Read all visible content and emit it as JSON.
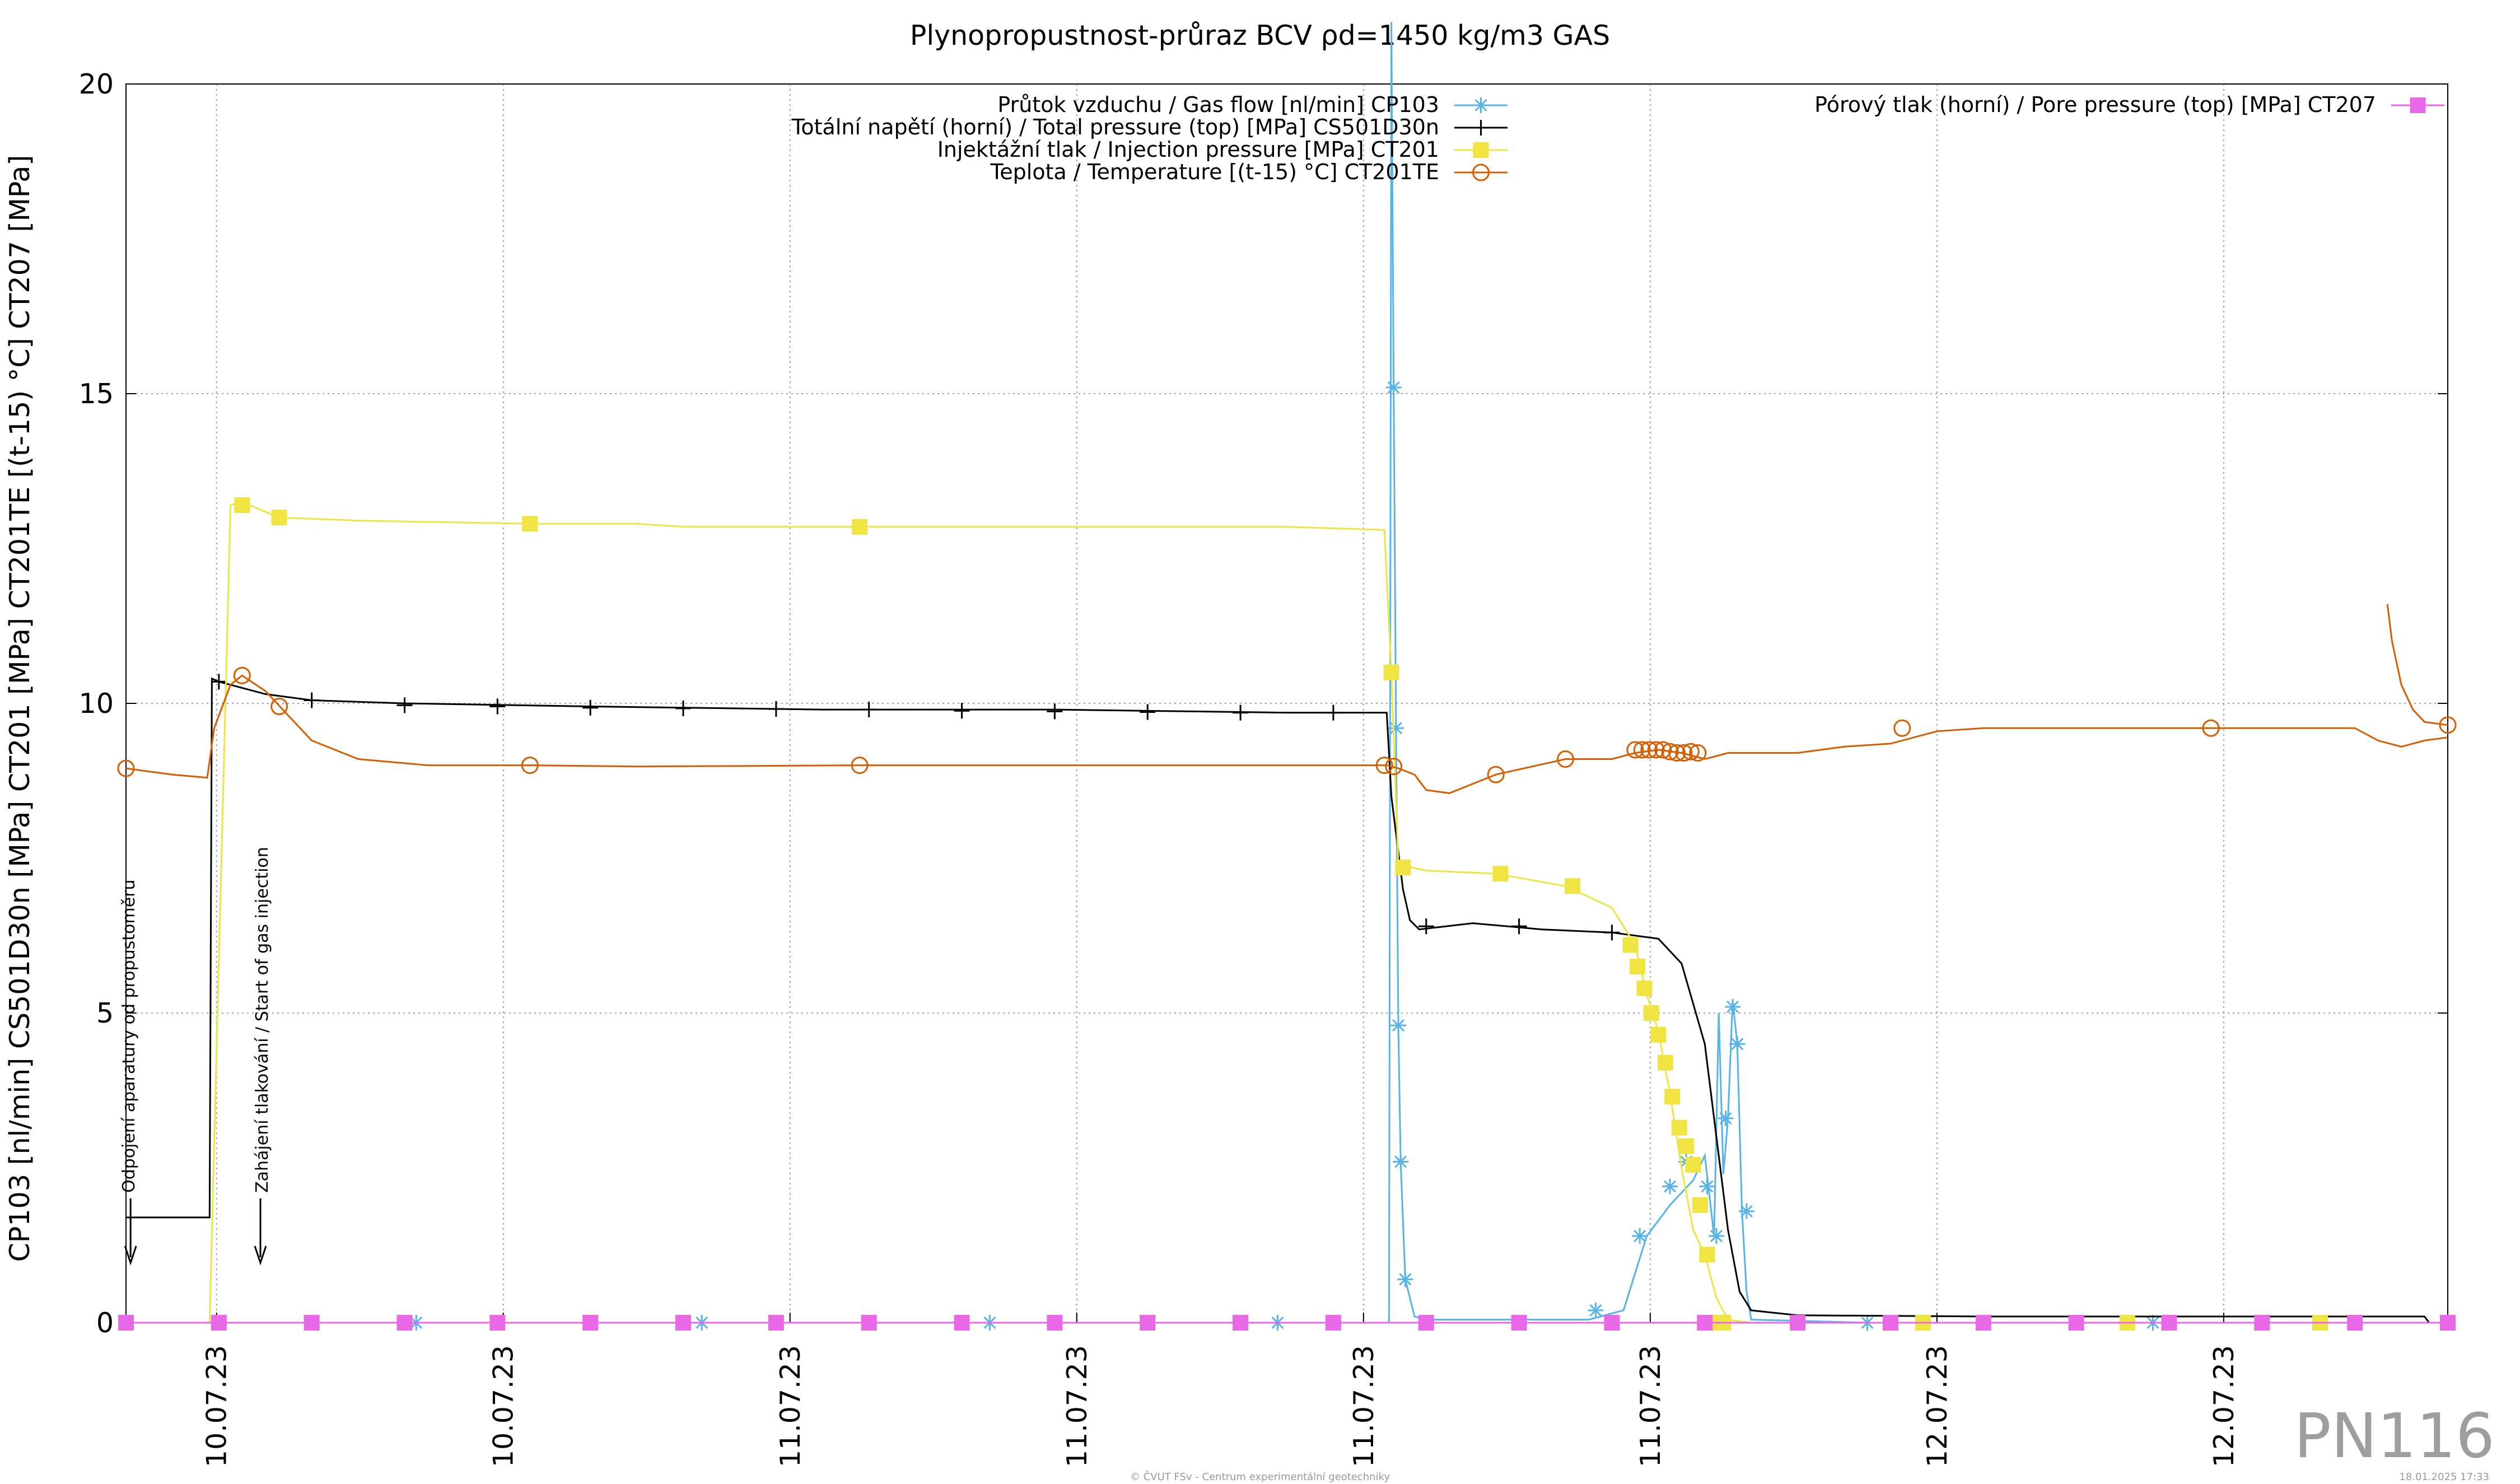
{
  "chart_data": {
    "type": "line",
    "title": "Plynopropustnost-průraz BCV ρd=1450 kg/m3 GAS",
    "ylabel": "CP103 [nl/min] CS501D30n [MPa] CT201 [MPa] CT201TE [(t-15) °C] CT207 [MPa]",
    "xlabel": "",
    "ylim": [
      0,
      20
    ],
    "xlim": [
      0,
      100
    ],
    "yticks": [
      "0",
      "5",
      "10",
      "15",
      "20"
    ],
    "xtick_labels": [
      "10.07.23",
      "10.07.23",
      "11.07.23",
      "11.07.23",
      "11.07.23",
      "11.07.23",
      "12.07.23",
      "12.07.23"
    ],
    "grid": true,
    "legend_position": "top",
    "series": [
      {
        "name": "Průtok vzduchu / Gas flow [nl/min] CP103",
        "color": "#56b4e9",
        "marker": "asterisk",
        "points": [
          [
            0,
            0
          ],
          [
            12,
            0
          ],
          [
            25,
            0
          ],
          [
            37,
            0
          ],
          [
            50,
            0
          ],
          [
            54.4,
            0
          ],
          [
            54.5,
            21
          ],
          [
            54.6,
            15.1
          ],
          [
            54.7,
            9.6
          ],
          [
            54.8,
            4.8
          ],
          [
            54.9,
            2.6
          ],
          [
            55.1,
            0.7
          ],
          [
            55.5,
            0.1
          ],
          [
            56,
            0.05
          ],
          [
            60,
            0.05
          ],
          [
            63,
            0.05
          ],
          [
            64.5,
            0.2
          ],
          [
            65.5,
            1.4
          ],
          [
            66.5,
            1.9
          ],
          [
            67.5,
            2.3
          ],
          [
            68,
            2.7
          ],
          [
            68.4,
            1.4
          ],
          [
            68.6,
            5.0
          ],
          [
            68.8,
            2.4
          ],
          [
            69,
            3.3
          ],
          [
            69.2,
            5.2
          ],
          [
            69.4,
            4.5
          ],
          [
            69.6,
            1.8
          ],
          [
            69.8,
            0.5
          ],
          [
            70,
            0.05
          ],
          [
            75,
            0
          ],
          [
            87,
            0
          ],
          [
            100,
            0
          ]
        ],
        "marker_points": [
          [
            0,
            0
          ],
          [
            12.5,
            0
          ],
          [
            24.8,
            0
          ],
          [
            37.2,
            0
          ],
          [
            49.6,
            0
          ],
          [
            54.6,
            15.1
          ],
          [
            54.7,
            9.6
          ],
          [
            54.8,
            4.8
          ],
          [
            54.9,
            2.6
          ],
          [
            55.1,
            0.7
          ],
          [
            63.3,
            0.2
          ],
          [
            65.2,
            1.4
          ],
          [
            66.5,
            2.2
          ],
          [
            67.2,
            2.6
          ],
          [
            68.1,
            2.2
          ],
          [
            68.5,
            1.4
          ],
          [
            68.9,
            3.3
          ],
          [
            69.2,
            5.1
          ],
          [
            69.4,
            4.5
          ],
          [
            69.8,
            1.8
          ],
          [
            75,
            0
          ],
          [
            87.3,
            0
          ],
          [
            100,
            0
          ]
        ]
      },
      {
        "name": "Totální napětí (horní) / Total pressure (top) [MPa] CS501D30n",
        "color": "#000000",
        "marker": "plus",
        "points": [
          [
            0,
            1.7
          ],
          [
            3.6,
            1.7
          ],
          [
            3.7,
            10.4
          ],
          [
            4,
            10.35
          ],
          [
            6,
            10.15
          ],
          [
            8,
            10.05
          ],
          [
            12,
            10.0
          ],
          [
            20,
            9.95
          ],
          [
            30,
            9.9
          ],
          [
            40,
            9.9
          ],
          [
            50,
            9.85
          ],
          [
            54.3,
            9.85
          ],
          [
            54.5,
            8.5
          ],
          [
            55,
            7.0
          ],
          [
            55.3,
            6.5
          ],
          [
            55.7,
            6.35
          ],
          [
            58,
            6.45
          ],
          [
            61,
            6.35
          ],
          [
            64,
            6.3
          ],
          [
            66,
            6.2
          ],
          [
            67,
            5.8
          ],
          [
            68,
            4.5
          ],
          [
            68.5,
            3.0
          ],
          [
            69,
            1.5
          ],
          [
            69.5,
            0.5
          ],
          [
            70,
            0.2
          ],
          [
            72,
            0.12
          ],
          [
            80,
            0.1
          ],
          [
            90,
            0.1
          ],
          [
            99,
            0.1
          ],
          [
            99.2,
            0
          ]
        ],
        "marker_points": [
          [
            4,
            10.35
          ],
          [
            8,
            10.05
          ],
          [
            12,
            9.97
          ],
          [
            16,
            9.95
          ],
          [
            20,
            9.93
          ],
          [
            24,
            9.92
          ],
          [
            28,
            9.91
          ],
          [
            32,
            9.9
          ],
          [
            36,
            9.88
          ],
          [
            40,
            9.87
          ],
          [
            44,
            9.86
          ],
          [
            48,
            9.85
          ],
          [
            52,
            9.85
          ],
          [
            56,
            6.4
          ],
          [
            60,
            6.4
          ],
          [
            64,
            6.3
          ]
        ]
      },
      {
        "name": "Injektážní tlak / Injection pressure [MPa] CT201",
        "color": "#f0e442",
        "marker": "square",
        "points": [
          [
            3.6,
            0
          ],
          [
            4.5,
            13.2
          ],
          [
            5,
            13.25
          ],
          [
            6.6,
            13.0
          ],
          [
            10,
            12.95
          ],
          [
            17.4,
            12.9
          ],
          [
            22,
            12.9
          ],
          [
            24,
            12.85
          ],
          [
            31.6,
            12.85
          ],
          [
            40,
            12.85
          ],
          [
            50,
            12.85
          ],
          [
            54.2,
            12.8
          ],
          [
            54.5,
            10.5
          ],
          [
            54.8,
            7.4
          ],
          [
            56,
            7.3
          ],
          [
            59,
            7.25
          ],
          [
            62,
            7.05
          ],
          [
            64,
            6.7
          ],
          [
            65,
            6.1
          ],
          [
            65.5,
            5.3
          ],
          [
            66,
            4.7
          ],
          [
            66.5,
            3.7
          ],
          [
            67,
            2.5
          ],
          [
            67.5,
            1.5
          ],
          [
            68,
            1.1
          ],
          [
            68.5,
            0.4
          ],
          [
            69,
            0.05
          ],
          [
            70,
            0
          ],
          [
            100,
            0
          ]
        ],
        "marker_points": [
          [
            5,
            13.2
          ],
          [
            6.6,
            13.0
          ],
          [
            17.4,
            12.9
          ],
          [
            31.6,
            12.85
          ],
          [
            54.5,
            10.5
          ],
          [
            55,
            7.35
          ],
          [
            59.2,
            7.25
          ],
          [
            62.3,
            7.05
          ],
          [
            64.8,
            6.1
          ],
          [
            65.1,
            5.75
          ],
          [
            65.4,
            5.4
          ],
          [
            65.7,
            5.0
          ],
          [
            66,
            4.65
          ],
          [
            66.3,
            4.2
          ],
          [
            66.6,
            3.65
          ],
          [
            66.9,
            3.15
          ],
          [
            67.2,
            2.85
          ],
          [
            67.5,
            2.55
          ],
          [
            67.8,
            1.9
          ],
          [
            68.1,
            1.1
          ],
          [
            68.3,
            0
          ],
          [
            68.8,
            0
          ],
          [
            77.4,
            0
          ],
          [
            86.2,
            0
          ],
          [
            94.5,
            0
          ],
          [
            100,
            0
          ]
        ]
      },
      {
        "name": "Teplota / Temperature [(t-15) °C] CT201TE",
        "color": "#d55e00",
        "marker": "circle",
        "points": [
          [
            0,
            8.95
          ],
          [
            2,
            8.85
          ],
          [
            3.5,
            8.8
          ],
          [
            3.8,
            9.6
          ],
          [
            4.5,
            10.3
          ],
          [
            5,
            10.45
          ],
          [
            6,
            10.2
          ],
          [
            7,
            9.8
          ],
          [
            8,
            9.4
          ],
          [
            10,
            9.1
          ],
          [
            13,
            9.0
          ],
          [
            17.4,
            9.0
          ],
          [
            22,
            8.98
          ],
          [
            31.6,
            9.0
          ],
          [
            40,
            9.0
          ],
          [
            50,
            9.0
          ],
          [
            54.3,
            9.0
          ],
          [
            54.8,
            8.95
          ],
          [
            55.5,
            8.85
          ],
          [
            56,
            8.6
          ],
          [
            57,
            8.55
          ],
          [
            58,
            8.7
          ],
          [
            59,
            8.85
          ],
          [
            62,
            9.1
          ],
          [
            64,
            9.1
          ],
          [
            65,
            9.2
          ],
          [
            66,
            9.25
          ],
          [
            67,
            9.2
          ],
          [
            68,
            9.1
          ],
          [
            69,
            9.2
          ],
          [
            70,
            9.2
          ],
          [
            72,
            9.2
          ],
          [
            74,
            9.3
          ],
          [
            76,
            9.35
          ],
          [
            78,
            9.55
          ],
          [
            80,
            9.6
          ],
          [
            85,
            9.6
          ],
          [
            90,
            9.6
          ],
          [
            94.5,
            9.6
          ],
          [
            96,
            9.6
          ],
          [
            97,
            9.4
          ],
          [
            98,
            9.3
          ],
          [
            99,
            9.4
          ],
          [
            100,
            9.45
          ]
        ],
        "marker_points": [
          [
            0,
            8.95
          ],
          [
            5,
            10.45
          ],
          [
            6.6,
            9.95
          ],
          [
            17.4,
            9.0
          ],
          [
            31.6,
            9.0
          ],
          [
            54.2,
            9.0
          ],
          [
            54.6,
            8.98
          ],
          [
            59,
            8.85
          ],
          [
            62,
            9.1
          ],
          [
            65,
            9.25
          ],
          [
            65.3,
            9.25
          ],
          [
            65.6,
            9.25
          ],
          [
            65.9,
            9.25
          ],
          [
            66.2,
            9.25
          ],
          [
            66.5,
            9.22
          ],
          [
            66.8,
            9.2
          ],
          [
            67.1,
            9.2
          ],
          [
            67.4,
            9.22
          ],
          [
            67.7,
            9.2
          ],
          [
            76.5,
            9.6
          ],
          [
            89.8,
            9.6
          ],
          [
            100,
            9.65
          ]
        ]
      },
      {
        "name": "Pórový tlak (horní) / Pore pressure (top) [MPa] CT207",
        "color": "#e868e8",
        "marker": "square",
        "points": [
          [
            0,
            0
          ],
          [
            100,
            0
          ]
        ],
        "marker_points": [
          [
            0,
            0
          ],
          [
            4,
            0
          ],
          [
            8,
            0
          ],
          [
            12,
            0
          ],
          [
            16,
            0
          ],
          [
            20,
            0
          ],
          [
            24,
            0
          ],
          [
            28,
            0
          ],
          [
            32,
            0
          ],
          [
            36,
            0
          ],
          [
            40,
            0
          ],
          [
            44,
            0
          ],
          [
            48,
            0
          ],
          [
            52,
            0
          ],
          [
            56,
            0
          ],
          [
            60,
            0
          ],
          [
            64,
            0
          ],
          [
            68,
            0
          ],
          [
            72,
            0
          ],
          [
            76,
            0
          ],
          [
            80,
            0
          ],
          [
            84,
            0
          ],
          [
            88,
            0
          ],
          [
            92,
            0
          ],
          [
            96,
            0
          ],
          [
            100,
            0
          ]
        ]
      },
      {
        "name": "",
        "color": "#d55e00",
        "marker": "none",
        "points": [
          [
            97.4,
            11.6
          ],
          [
            97.6,
            11.0
          ],
          [
            98,
            10.3
          ],
          [
            98.5,
            9.9
          ],
          [
            99,
            9.7
          ],
          [
            100,
            9.65
          ]
        ],
        "marker_points": []
      }
    ],
    "annotations": [
      {
        "text": "Odpojení aparatury od propustoměru",
        "x": 0.1
      },
      {
        "text": "Zahájení tlakování / Start of gas injection",
        "x": 5.7
      }
    ]
  },
  "badge": "PN116",
  "footer_left": "© ČVUT FSv - Centrum experimentální geotechniky",
  "footer_right": "18.01.2025 17:33"
}
